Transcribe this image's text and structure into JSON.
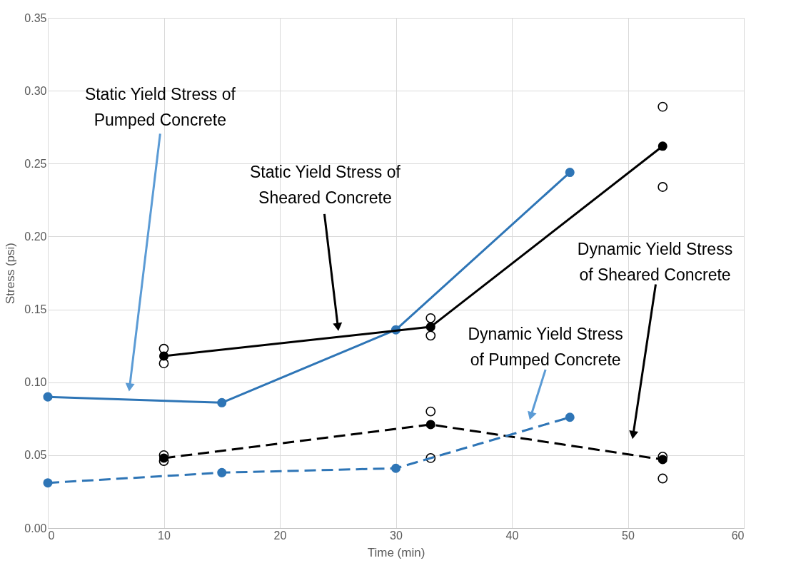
{
  "chart_data": {
    "type": "line",
    "xlabel": "Time (min)",
    "ylabel": "Stress (psi)",
    "xlim": [
      0,
      60
    ],
    "xticks": [
      0,
      10,
      20,
      30,
      40,
      50,
      60
    ],
    "ylim": [
      0,
      0.35
    ],
    "yticks": [
      {
        "value": 0,
        "label": "0.00"
      },
      {
        "value": 0.05,
        "label": "0.05"
      },
      {
        "value": 0.1,
        "label": "0.10"
      },
      {
        "value": 0.15,
        "label": "0.15"
      },
      {
        "value": 0.2,
        "label": "0.20"
      },
      {
        "value": 0.25,
        "label": "0.25"
      },
      {
        "value": 0.3,
        "label": "0.30"
      },
      {
        "value": 0.35,
        "label": "0.35"
      }
    ],
    "grid": true,
    "marker": "circle",
    "series": [
      {
        "color": "#2e75b6",
        "line_style": "solid",
        "x": [
          0,
          15,
          30,
          45
        ],
        "values": [
          0.09,
          0.086,
          0.136,
          0.244
        ]
      },
      {
        "color": "#000000",
        "line_style": "solid",
        "x": [
          10,
          33,
          53
        ],
        "values": [
          0.118,
          0.138,
          0.262
        ]
      },
      {
        "color": "#000000",
        "line_style": "dashed",
        "x": [
          10,
          33,
          53
        ],
        "values": [
          0.048,
          0.071,
          0.047
        ]
      },
      {
        "color": "#2e75b6",
        "line_style": "dashed",
        "x": [
          0,
          15,
          30,
          45
        ],
        "values": [
          0.031,
          0.038,
          0.041,
          0.076
        ]
      },
      {
        "type": "scatter",
        "color": "#000000",
        "x": [
          10,
          10,
          33,
          33,
          53,
          53,
          10,
          10,
          33,
          33,
          53,
          53
        ],
        "values": [
          0.123,
          0.113,
          0.144,
          0.132,
          0.289,
          0.234,
          0.05,
          0.046,
          0.08,
          0.048,
          0.049,
          0.034
        ]
      }
    ],
    "annotations": [
      "Static Yield Stress of\nPumped Concrete",
      "Static Yield Stress of\nSheared Concrete",
      "Dynamic Yield Stress\nof Sheared Concrete",
      "Dynamic Yield Stress\nof Pumped Concrete"
    ]
  }
}
